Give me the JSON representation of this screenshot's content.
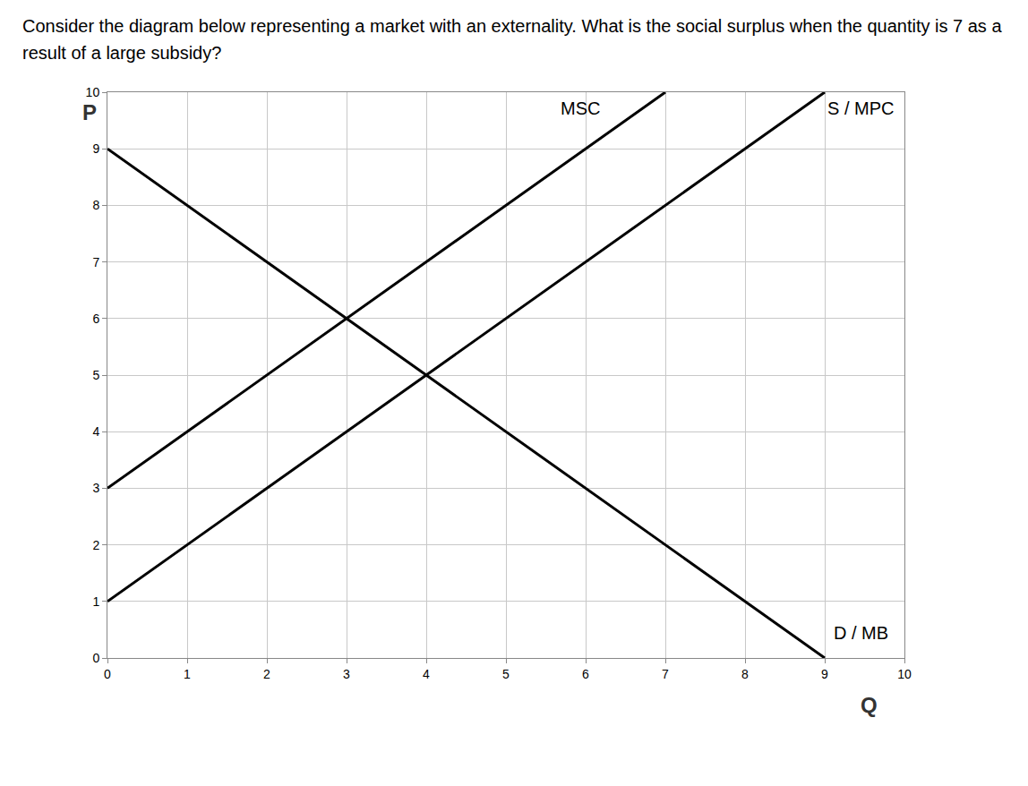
{
  "chart_data": {
    "type": "line",
    "title": "Consider the diagram below representing a market with an externality. What is the social surplus when the quantity is 7 as a result of a large subsidy?",
    "x_label": "Q",
    "y_label": "P",
    "series": [
      {
        "name": "MSC",
        "color": "#000000",
        "x": [
          0,
          7
        ],
        "values": [
          3,
          10
        ]
      },
      {
        "name": "S / MPC",
        "color": "#000000",
        "x": [
          0,
          9
        ],
        "values": [
          1,
          10
        ]
      },
      {
        "name": "D / MB",
        "color": "#000000",
        "x": [
          0,
          9
        ],
        "values": [
          9,
          0
        ]
      }
    ],
    "xlim": [
      0,
      10
    ],
    "xticks": [
      0,
      1,
      2,
      3,
      4,
      5,
      6,
      7,
      8,
      9,
      10
    ],
    "ylim": [
      0,
      10
    ],
    "yticks": [
      0,
      1,
      2,
      3,
      4,
      5,
      6,
      7,
      8,
      9,
      10
    ],
    "grid": true
  }
}
